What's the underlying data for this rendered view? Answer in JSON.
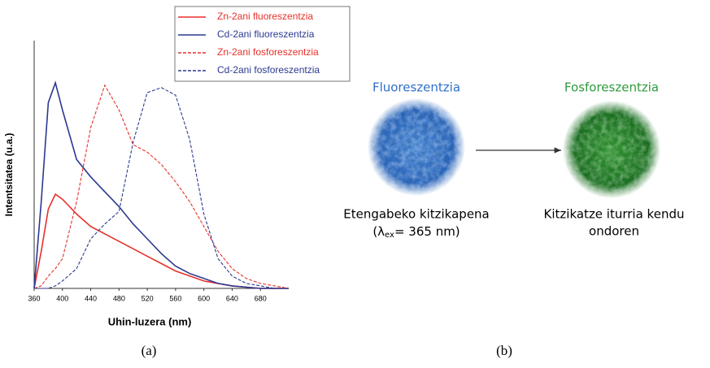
{
  "chart_data": {
    "type": "line",
    "x_label": "Uhin-luzera (nm)",
    "y_label": "Intentsitatea (u.a.)",
    "x": [
      360,
      370,
      380,
      390,
      400,
      420,
      440,
      460,
      480,
      500,
      520,
      540,
      560,
      580,
      600,
      620,
      640,
      660,
      680,
      700,
      720
    ],
    "series": [
      {
        "name": "Zn-2ani fluoreszentzia",
        "color": "#e8302a",
        "dashed": false,
        "values": [
          0,
          0.15,
          0.32,
          0.38,
          0.36,
          0.3,
          0.25,
          0.22,
          0.19,
          0.16,
          0.13,
          0.1,
          0.07,
          0.05,
          0.03,
          0.02,
          0.01,
          0.005,
          0,
          0,
          0
        ]
      },
      {
        "name": "Cd-2ani fluoreszentzia",
        "color": "#2b3990",
        "dashed": false,
        "values": [
          0,
          0.35,
          0.75,
          0.83,
          0.72,
          0.52,
          0.45,
          0.39,
          0.33,
          0.26,
          0.2,
          0.14,
          0.09,
          0.06,
          0.04,
          0.02,
          0.01,
          0.005,
          0,
          0,
          0
        ]
      },
      {
        "name": "Zn-2ani fosforeszentzia",
        "color": "#e8302a",
        "dashed": true,
        "values": [
          0,
          0.01,
          0.05,
          0.08,
          0.12,
          0.35,
          0.65,
          0.82,
          0.72,
          0.58,
          0.55,
          0.5,
          0.43,
          0.35,
          0.25,
          0.15,
          0.08,
          0.04,
          0.02,
          0.01,
          0
        ]
      },
      {
        "name": "Cd-2ani fosforeszentzia",
        "color": "#2b3990",
        "dashed": true,
        "values": [
          0,
          0,
          0,
          0.01,
          0.03,
          0.08,
          0.2,
          0.26,
          0.31,
          0.59,
          0.79,
          0.81,
          0.78,
          0.6,
          0.3,
          0.12,
          0.05,
          0.02,
          0.01,
          0,
          0
        ]
      }
    ],
    "xlim": [
      360,
      720
    ],
    "xticks": [
      360,
      400,
      440,
      480,
      520,
      560,
      600,
      640,
      680
    ],
    "ylim": [
      0,
      1
    ],
    "legend": "upper right"
  },
  "panel_b": {
    "left_title": "Fluoreszentzia",
    "right_title": "Fosforeszentzia",
    "left_caption": [
      "Etengabeko kitzikapena",
      [
        "(λ",
        "ex",
        "= 365 nm)"
      ]
    ],
    "right_caption": [
      "Kitzikatze iturria kendu",
      "ondoren"
    ]
  },
  "captions": [
    "(a)",
    "(b)"
  ]
}
